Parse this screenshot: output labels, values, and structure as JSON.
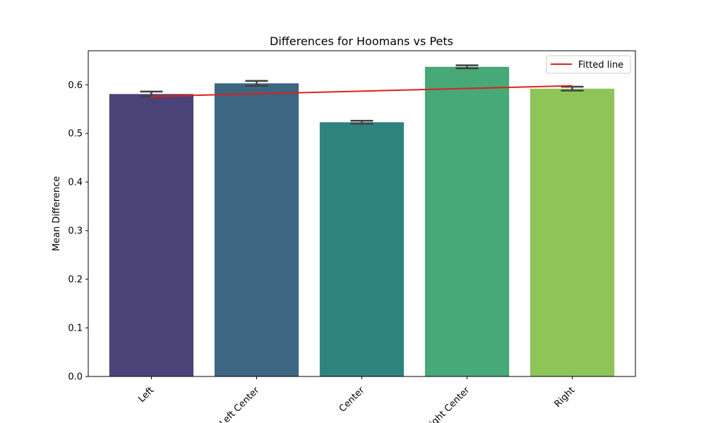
{
  "chart_data": {
    "type": "bar",
    "title": "Differences for Hoomans vs Pets",
    "xlabel": "",
    "ylabel": "Mean Difference",
    "categories": [
      "Left",
      "Left Center",
      "Center",
      "Right Center",
      "Right"
    ],
    "values": [
      0.581,
      0.603,
      0.523,
      0.637,
      0.592
    ],
    "error_bars": [
      0.005,
      0.005,
      0.003,
      0.003,
      0.004
    ],
    "colors": [
      "#4b4378",
      "#3d6683",
      "#2e837e",
      "#47a878",
      "#8fc458"
    ],
    "ylim": [
      0,
      0.67
    ],
    "yticks": [
      0.0,
      0.1,
      0.2,
      0.3,
      0.4,
      0.5,
      0.6
    ],
    "ytick_labels": [
      "0.0",
      "0.1",
      "0.2",
      "0.3",
      "0.4",
      "0.5",
      "0.6"
    ],
    "fitted_line": {
      "name": "Fitted line",
      "color": "#e0201a",
      "start": 0.576,
      "end": 0.598
    },
    "legend_position": "top-right",
    "grid": false
  }
}
